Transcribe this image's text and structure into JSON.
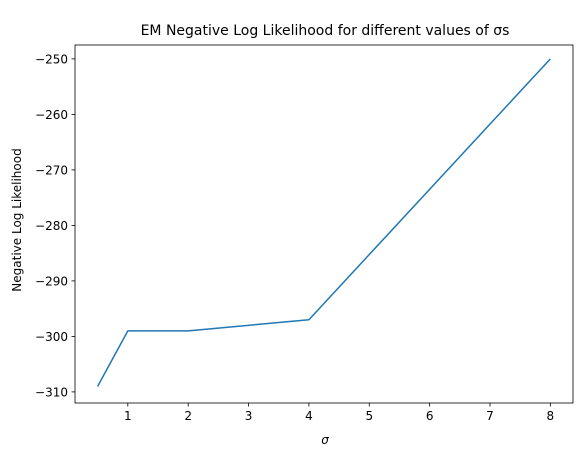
{
  "chart_data": {
    "type": "line",
    "title": "EM Negative Log Likelihood for different values of σs",
    "xlabel": "σ",
    "ylabel": "Negative Log Likelihood",
    "xlim": [
      0.125,
      8.375
    ],
    "ylim": [
      -312,
      -247.5
    ],
    "xticks": [
      1,
      2,
      3,
      4,
      5,
      6,
      7,
      8
    ],
    "yticks": [
      -310,
      -300,
      -290,
      -280,
      -270,
      -260,
      -250
    ],
    "grid": false,
    "series": [
      {
        "color": "#1f77b4",
        "x": [
          0.5,
          1,
          2,
          4,
          8
        ],
        "y": [
          -309,
          -299,
          -299,
          -297,
          -250
        ]
      }
    ]
  }
}
